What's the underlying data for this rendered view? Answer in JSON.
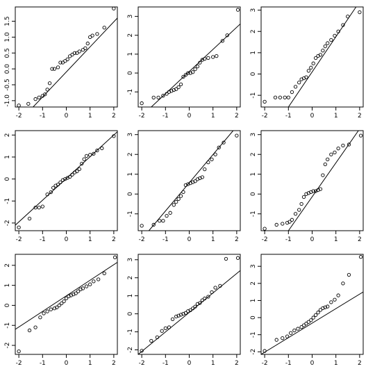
{
  "chart_data": [
    {
      "type": "scatter",
      "xlim": [
        -2.15,
        2.15
      ],
      "ylim": [
        -1.2,
        1.95
      ],
      "xticks": [
        "-2",
        "-1",
        "0",
        "1",
        "2"
      ],
      "yticks": [
        "-1.0",
        "-0.5",
        "0.0",
        "0.5",
        "1.0",
        "1.5"
      ],
      "yticks_values": [
        -1.0,
        -0.5,
        0.0,
        0.5,
        1.0,
        1.5
      ],
      "line": [
        [
          -1.4,
          -1.2
        ],
        [
          2.15,
          1.6
        ]
      ],
      "x": [
        -2.0,
        -1.6,
        -1.3,
        -1.15,
        -1.0,
        -0.9,
        -0.8,
        -0.7,
        -0.6,
        -0.5,
        -0.35,
        -0.25,
        -0.15,
        -0.05,
        0.05,
        0.15,
        0.25,
        0.35,
        0.45,
        0.55,
        0.7,
        0.8,
        0.9,
        1.0,
        1.1,
        1.3,
        1.6,
        2.0
      ],
      "y": [
        -1.15,
        -1.1,
        -0.95,
        -0.9,
        -0.85,
        -0.8,
        -0.65,
        -0.45,
        0.0,
        0.0,
        0.05,
        0.2,
        0.2,
        0.25,
        0.3,
        0.4,
        0.45,
        0.5,
        0.5,
        0.55,
        0.6,
        0.65,
        0.8,
        1.0,
        1.05,
        1.1,
        1.3,
        1.9
      ]
    },
    {
      "type": "scatter",
      "xlim": [
        -2.15,
        2.15
      ],
      "ylim": [
        -1.8,
        3.5
      ],
      "xticks": [
        "-2",
        "-1",
        "0",
        "1",
        "2"
      ],
      "yticks": [
        "-1",
        "0",
        "1",
        "2",
        "3"
      ],
      "yticks_values": [
        -1,
        0,
        1,
        2,
        3
      ],
      "line": [
        [
          -1.6,
          -1.8
        ],
        [
          2.15,
          2.6
        ]
      ],
      "x": [
        -2.0,
        -1.5,
        -1.3,
        -1.1,
        -0.95,
        -0.85,
        -0.75,
        -0.65,
        -0.55,
        -0.45,
        -0.35,
        -0.25,
        -0.15,
        -0.05,
        0.05,
        0.15,
        0.25,
        0.35,
        0.45,
        0.55,
        0.65,
        0.8,
        1.0,
        1.15,
        1.4,
        1.6,
        2.05
      ],
      "y": [
        -1.6,
        -1.3,
        -1.3,
        -1.2,
        -1.1,
        -1.0,
        -0.95,
        -0.9,
        -0.85,
        -0.75,
        -0.6,
        -0.2,
        -0.1,
        0.0,
        0.0,
        0.05,
        0.2,
        0.35,
        0.55,
        0.7,
        0.75,
        0.8,
        0.85,
        0.9,
        1.7,
        2.0,
        3.35
      ]
    },
    {
      "type": "scatter",
      "xlim": [
        -2.15,
        2.15
      ],
      "ylim": [
        -1.55,
        3.15
      ],
      "xticks": [
        "-2",
        "-1",
        "0",
        "1",
        "2"
      ],
      "yticks": [
        "-1",
        "0",
        "1",
        "2",
        "3"
      ],
      "yticks_values": [
        -1,
        0,
        1,
        2,
        3
      ],
      "line": [
        [
          -1.0,
          -1.55
        ],
        [
          1.85,
          3.15
        ]
      ],
      "x": [
        -2.0,
        -1.55,
        -1.35,
        -1.15,
        -1.0,
        -0.85,
        -0.7,
        -0.55,
        -0.45,
        -0.35,
        -0.25,
        -0.15,
        -0.05,
        0.05,
        0.15,
        0.25,
        0.35,
        0.45,
        0.55,
        0.65,
        0.8,
        0.95,
        1.1,
        1.3,
        1.5,
        2.0
      ],
      "y": [
        -1.3,
        -1.1,
        -1.1,
        -1.1,
        -1.1,
        -0.85,
        -0.6,
        -0.4,
        -0.25,
        -0.2,
        -0.15,
        0.15,
        0.3,
        0.5,
        0.75,
        0.85,
        0.9,
        1.1,
        1.3,
        1.45,
        1.6,
        1.8,
        2.0,
        2.3,
        2.7,
        2.9
      ]
    },
    {
      "type": "scatter",
      "xlim": [
        -2.15,
        2.15
      ],
      "ylim": [
        -2.35,
        2.2
      ],
      "xticks": [
        "-2",
        "-1",
        "0",
        "1",
        "2"
      ],
      "yticks": [
        "-2",
        "-1",
        "0",
        "1",
        "2"
      ],
      "yticks_values": [
        -2,
        -1,
        0,
        1,
        2
      ],
      "line": [
        [
          -2.15,
          -2.1
        ],
        [
          2.15,
          2.15
        ]
      ],
      "x": [
        -2.0,
        -1.55,
        -1.3,
        -1.15,
        -1.0,
        -0.8,
        -0.65,
        -0.55,
        -0.45,
        -0.35,
        -0.25,
        -0.15,
        -0.05,
        0.05,
        0.15,
        0.25,
        0.35,
        0.45,
        0.55,
        0.65,
        0.75,
        0.85,
        1.0,
        1.15,
        1.3,
        1.5,
        2.0
      ],
      "y": [
        -2.2,
        -1.8,
        -1.3,
        -1.3,
        -1.25,
        -0.7,
        -0.6,
        -0.4,
        -0.3,
        -0.25,
        -0.15,
        -0.05,
        0.0,
        0.05,
        0.1,
        0.2,
        0.3,
        0.35,
        0.45,
        0.7,
        0.9,
        1.05,
        1.1,
        1.15,
        1.3,
        1.4,
        1.95
      ]
    },
    {
      "type": "scatter",
      "xlim": [
        -2.15,
        2.15
      ],
      "ylim": [
        -1.85,
        3.2
      ],
      "xticks": [
        "-2",
        "-1",
        "0",
        "1",
        "2"
      ],
      "yticks": [
        "-1",
        "0",
        "1",
        "2",
        "3"
      ],
      "yticks_values": [
        -1,
        0,
        1,
        2,
        3
      ],
      "line": [
        [
          -1.7,
          -1.85
        ],
        [
          1.85,
          3.2
        ]
      ],
      "x": [
        -2.0,
        -1.5,
        -1.25,
        -1.1,
        -0.95,
        -0.8,
        -0.65,
        -0.55,
        -0.45,
        -0.35,
        -0.25,
        -0.15,
        -0.05,
        0.05,
        0.15,
        0.25,
        0.35,
        0.45,
        0.55,
        0.65,
        0.8,
        0.95,
        1.1,
        1.25,
        1.45,
        2.0
      ],
      "y": [
        -1.6,
        -1.55,
        -1.35,
        -1.35,
        -1.1,
        -0.95,
        -0.55,
        -0.4,
        -0.25,
        -0.1,
        0.1,
        0.45,
        0.5,
        0.55,
        0.6,
        0.65,
        0.75,
        0.8,
        0.85,
        1.25,
        1.6,
        1.75,
        2.0,
        2.35,
        2.6,
        2.95
      ]
    },
    {
      "type": "scatter",
      "xlim": [
        -2.15,
        2.15
      ],
      "ylim": [
        -1.85,
        3.2
      ],
      "xticks": [
        "-2",
        "-1",
        "0",
        "1",
        "2"
      ],
      "yticks": [
        "-1",
        "0",
        "1",
        "2",
        "3"
      ],
      "yticks_values": [
        -1,
        0,
        1,
        2,
        3
      ],
      "line": [
        [
          -1.0,
          -1.85
        ],
        [
          1.95,
          3.2
        ]
      ],
      "x": [
        -2.0,
        -1.5,
        -1.25,
        -1.05,
        -0.95,
        -0.85,
        -0.7,
        -0.55,
        -0.45,
        -0.35,
        -0.25,
        -0.15,
        -0.05,
        0.05,
        0.15,
        0.25,
        0.35,
        0.45,
        0.55,
        0.65,
        0.8,
        0.95,
        1.1,
        1.3,
        1.55,
        2.05
      ],
      "y": [
        -1.75,
        -1.55,
        -1.5,
        -1.45,
        -1.4,
        -1.3,
        -1.0,
        -0.8,
        -0.5,
        -0.15,
        0.0,
        0.05,
        0.1,
        0.15,
        0.15,
        0.2,
        0.25,
        0.95,
        1.5,
        1.75,
        2.0,
        2.1,
        2.3,
        2.45,
        2.5,
        2.95
      ]
    },
    {
      "type": "scatter",
      "xlim": [
        -2.15,
        2.15
      ],
      "ylim": [
        -2.45,
        2.55
      ],
      "xticks": [
        "-2",
        "-1",
        "0",
        "1",
        "2"
      ],
      "yticks": [
        "-2",
        "-1",
        "0",
        "1",
        "2"
      ],
      "yticks_values": [
        -2,
        -1,
        0,
        1,
        2
      ],
      "line": [
        [
          -2.15,
          -1.2
        ],
        [
          2.15,
          2.15
        ]
      ],
      "x": [
        -2.0,
        -1.55,
        -1.3,
        -1.1,
        -0.95,
        -0.8,
        -0.65,
        -0.5,
        -0.4,
        -0.3,
        -0.2,
        -0.1,
        0.0,
        0.1,
        0.2,
        0.3,
        0.4,
        0.5,
        0.6,
        0.7,
        0.85,
        1.0,
        1.15,
        1.35,
        1.6,
        2.05
      ],
      "y": [
        -2.3,
        -1.25,
        -1.1,
        -0.6,
        -0.4,
        -0.3,
        -0.2,
        -0.15,
        -0.1,
        0.0,
        0.1,
        0.2,
        0.35,
        0.45,
        0.5,
        0.55,
        0.6,
        0.7,
        0.8,
        0.85,
        0.95,
        1.05,
        1.2,
        1.3,
        1.6,
        2.4
      ]
    },
    {
      "type": "scatter",
      "xlim": [
        -2.15,
        2.15
      ],
      "ylim": [
        -2.25,
        3.3
      ],
      "xticks": [
        "-2",
        "-1",
        "0",
        "1",
        "2"
      ],
      "yticks": [
        "-2",
        "-1",
        "0",
        "1",
        "2",
        "3"
      ],
      "yticks_values": [
        -2,
        -1,
        0,
        1,
        2,
        3
      ],
      "line": [
        [
          -2.15,
          -2.25
        ],
        [
          2.15,
          2.4
        ]
      ],
      "x": [
        -2.0,
        -1.6,
        -1.35,
        -1.15,
        -1.0,
        -0.85,
        -0.7,
        -0.55,
        -0.45,
        -0.35,
        -0.25,
        -0.15,
        -0.05,
        0.05,
        0.15,
        0.25,
        0.35,
        0.45,
        0.55,
        0.65,
        0.8,
        0.95,
        1.1,
        1.3,
        1.55,
        2.05
      ],
      "y": [
        -2.05,
        -1.5,
        -1.3,
        -0.95,
        -0.8,
        -0.75,
        -0.3,
        -0.15,
        -0.1,
        -0.05,
        0.0,
        0.05,
        0.15,
        0.2,
        0.3,
        0.4,
        0.55,
        0.6,
        0.75,
        0.85,
        0.95,
        1.2,
        1.45,
        1.55,
        3.05,
        3.1
      ]
    },
    {
      "type": "scatter",
      "xlim": [
        -2.15,
        2.15
      ],
      "ylim": [
        -2.15,
        3.7
      ],
      "xticks": [
        "-2",
        "-1",
        "0",
        "1",
        "2"
      ],
      "yticks": [
        "-2",
        "-1",
        "0",
        "1",
        "2",
        "3"
      ],
      "yticks_values": [
        -2,
        -1,
        0,
        1,
        2,
        3
      ],
      "line": [
        [
          -2.15,
          -2.15
        ],
        [
          2.15,
          1.5
        ]
      ],
      "x": [
        -2.0,
        -1.5,
        -1.25,
        -1.05,
        -0.9,
        -0.75,
        -0.6,
        -0.45,
        -0.35,
        -0.25,
        -0.15,
        -0.05,
        0.05,
        0.15,
        0.25,
        0.35,
        0.45,
        0.55,
        0.65,
        0.8,
        0.95,
        1.1,
        1.3,
        1.55,
        2.05
      ],
      "y": [
        -1.95,
        -1.3,
        -1.2,
        -1.1,
        -0.9,
        -0.75,
        -0.65,
        -0.55,
        -0.45,
        -0.35,
        -0.25,
        -0.15,
        0.0,
        0.15,
        0.3,
        0.45,
        0.55,
        0.6,
        0.65,
        0.9,
        1.05,
        1.3,
        2.0,
        2.5,
        3.55
      ]
    }
  ]
}
